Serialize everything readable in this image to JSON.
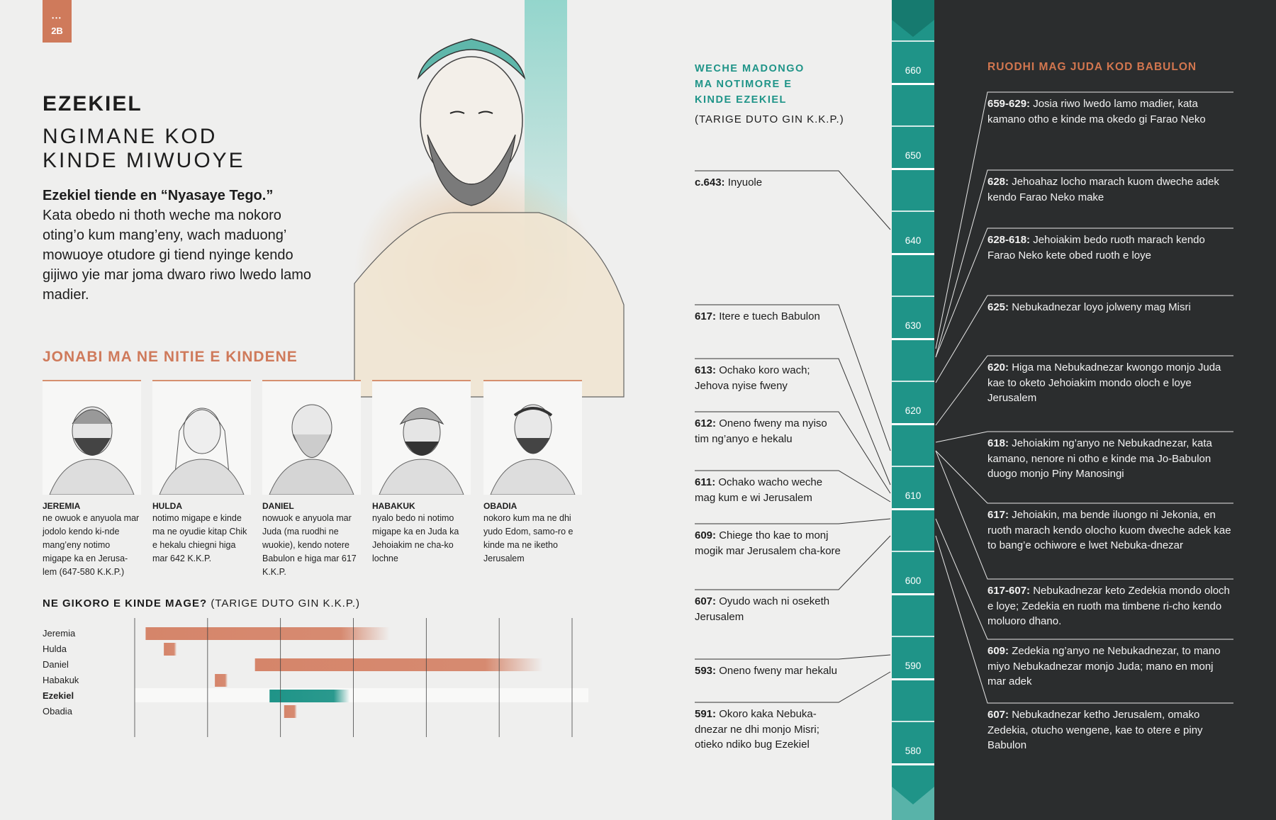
{
  "page_tab": {
    "dots": "•••",
    "label": "2B"
  },
  "header": {
    "name": "EZEKIEL",
    "subtitle": "NGIMANE KOD\nKINDE MIWUOYE",
    "intro_bold": "Ezekiel tiende en “Nyasaye Tego.”",
    "intro_text": "Kata obedo ni thoth weche ma nokoro oting’o kum mang’eny, wach maduong’ mowuoye otudore gi tiend nyinge kendo gijiwo yie mar joma dwaro riwo lwedo lamo madier."
  },
  "prophets_section": {
    "title": "JONABI MA NE NITIE E KINDENE",
    "items": [
      {
        "name": "JEREMIA",
        "desc": "ne owuok e anyuola mar jodolo kendo ki-nde mang’eny notimo migape ka en Jerusa-lem (647-580 K.K.P.)"
      },
      {
        "name": "HULDA",
        "desc": "notimo migape e kinde ma ne oyudie kitap Chik e hekalu chiegni higa mar 642 K.K.P."
      },
      {
        "name": "DANIEL",
        "desc": "nowuok e anyuola mar Juda (ma ruodhi ne wuokie), kendo notere Babulon e higa mar 617 K.K.P."
      },
      {
        "name": "HABAKUK",
        "desc": "nyalo bedo ni notimo migape ka en Juda ka Jehoiakim ne cha-ko lochne"
      },
      {
        "name": "OBADIA",
        "desc": "nokoro kum ma ne dhi yudo Edom, samo-ro e kinde ma ne iketho Jerusalem"
      }
    ]
  },
  "overlap_chart": {
    "title_bold": "NE GIKORO E KINDE MAGE?",
    "title_rest": " (TARIGE DUTO GIN K.K.P.)"
  },
  "chart_data": {
    "type": "bar",
    "title": "NE GIKORO E KINDE MAGE? (TARIGE DUTO GIN K.K.P.)",
    "categories": [
      "Jeremia",
      "Hulda",
      "Daniel",
      "Habakuk",
      "Ezekiel",
      "Obadia"
    ],
    "highlight": "Ezekiel",
    "series": [
      {
        "start": [
          647,
          642,
          617,
          628,
          613,
          609
        ],
        "end": [
          580,
          639,
          538,
          625,
          591,
          607
        ]
      }
    ],
    "x_ticks": [
      650,
      630,
      610,
      590,
      570,
      550,
      530
    ],
    "xlim": [
      650,
      530
    ],
    "colors": {
      "default": "#d5856a",
      "highlight": "#1f9488"
    },
    "grid": true
  },
  "timeline": {
    "left_title": "WECHE MADONGO\nMA NOTIMORE E\nKINDE EZEKIEL",
    "left_sub": "(TARIGE DUTO GIN K.K.P.)",
    "right_title": "RUODHI MAG JUDA KOD BABULON",
    "years": [
      "660",
      "650",
      "640",
      "630",
      "620",
      "610",
      "600",
      "590",
      "580"
    ],
    "left_events": [
      {
        "date": "c.643:",
        "text": " Inyuole",
        "year_value": 643
      },
      {
        "date": "617:",
        "text": " Itere e tuech Babulon",
        "year_value": 617
      },
      {
        "date": "613:",
        "text": " Ochako koro wach; Jehova nyise fweny",
        "year_value": 613
      },
      {
        "date": "612:",
        "text": " Oneno fweny ma nyiso tim ng’anyo e hekalu",
        "year_value": 612
      },
      {
        "date": "611:",
        "text": " Ochako wacho weche mag kum e wi Jerusalem",
        "year_value": 611
      },
      {
        "date": "609:",
        "text": " Chiege tho kae to monj mogik mar Jerusalem cha-kore",
        "year_value": 609
      },
      {
        "date": "607:",
        "text": " Oyudo wach ni oseketh Jerusalem",
        "year_value": 607
      },
      {
        "date": "593:",
        "text": " Oneno fweny mar hekalu",
        "year_value": 593
      },
      {
        "date": "591:",
        "text": " Okoro kaka Nebuka-dnezar ne dhi monjo Misri; otieko ndiko bug Ezekiel",
        "year_value": 591
      }
    ],
    "right_events": [
      {
        "date": "659-629:",
        "text": " Josia riwo lwedo lamo madier, kata kamano otho e kinde ma okedo gi Farao Neko",
        "year_value": 629
      },
      {
        "date": "628:",
        "text": " Jehoahaz locho marach kuom dweche adek kendo Farao Neko make",
        "year_value": 628
      },
      {
        "date": "628-618:",
        "text": " Jehoiakim bedo ruoth marach kendo Farao Neko kete obed ruoth e loye",
        "year_value": 628
      },
      {
        "date": "625:",
        "text": " Nebukadnezar loyo jolweny mag Misri",
        "year_value": 625
      },
      {
        "date": "620:",
        "text": " Higa ma Nebukadnezar kwongo monjo Juda kae to oketo Jehoiakim mondo oloch e loye Jerusalem",
        "year_value": 620
      },
      {
        "date": "618:",
        "text": " Jehoiakim ng’anyo ne Nebukadnezar, kata kamano, nenore ni otho e kinde ma Jo-Babulon duogo monjo Piny Manosingi",
        "year_value": 618
      },
      {
        "date": "617:",
        "text": " Jehoiakin, ma bende iluongo ni Jekonia, en ruoth marach kendo olocho kuom dweche adek kae to bang’e ochiwore e lwet Nebuka-dnezar",
        "year_value": 617
      },
      {
        "date": "617-607:",
        "text": " Nebukadnezar keto Zedekia mondo oloch e loye; Zedekia en ruoth ma timbene ri-cho kendo moluoro dhano.",
        "year_value": 617
      },
      {
        "date": "609:",
        "text": " Zedekia ng’anyo ne Nebukadnezar, to mano miyo Nebukadnezar monjo Juda; mano en monj mar adek",
        "year_value": 609
      },
      {
        "date": "607:",
        "text": " Nebukadnezar ketho Jerusalem, omako Zedekia, otucho wengene, kae to otere e piny Babulon",
        "year_value": 607
      }
    ]
  }
}
